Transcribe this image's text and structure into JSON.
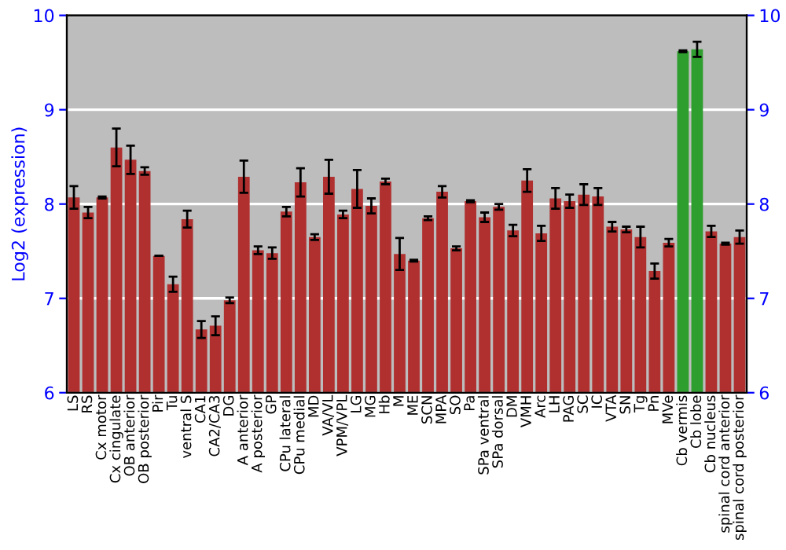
{
  "chart_data": {
    "type": "bar",
    "ylabel": "Log2 (expression)",
    "categories": [
      "LS",
      "RS",
      "Cx motor",
      "Cx cingulate",
      "OB anterior",
      "OB posterior",
      "Pir",
      "Tu",
      "ventral S",
      "CA1",
      "CA2/CA3",
      "DG",
      "A anterior",
      "A posterior",
      "GP",
      "CPu lateral",
      "CPu medial",
      "MD",
      "VA/VL",
      "VPM/VPL",
      "LG",
      "MG",
      "Hb",
      "M",
      "ME",
      "SCN",
      "MPA",
      "SO",
      "Pa",
      "SPa ventral",
      "SPa dorsal",
      "DM",
      "VMH",
      "Arc",
      "LH",
      "PAG",
      "SC",
      "IC",
      "VTA",
      "SN",
      "Tg",
      "Pn",
      "MVe",
      "Cb vermis",
      "Cb lobe",
      "Cb nucleus",
      "spinal cord anterior",
      "spinal cord posterior"
    ],
    "values": [
      8.07,
      7.91,
      8.07,
      8.6,
      8.47,
      8.35,
      7.45,
      7.15,
      7.84,
      6.67,
      6.71,
      6.98,
      8.29,
      7.51,
      7.48,
      7.92,
      8.23,
      7.65,
      8.29,
      7.89,
      8.16,
      7.98,
      8.24,
      7.47,
      7.4,
      7.85,
      8.13,
      7.53,
      8.03,
      7.86,
      7.97,
      7.72,
      8.25,
      7.69,
      8.06,
      8.03,
      8.1,
      8.08,
      7.76,
      7.73,
      7.65,
      7.29,
      7.59,
      9.62,
      9.64,
      7.71,
      7.58,
      7.65
    ],
    "errors": [
      0.12,
      0.06,
      0.01,
      0.2,
      0.15,
      0.04,
      0,
      0.08,
      0.09,
      0.09,
      0.1,
      0.03,
      0.17,
      0.04,
      0.06,
      0.05,
      0.15,
      0.03,
      0.18,
      0.04,
      0.2,
      0.08,
      0.03,
      0.17,
      0.01,
      0.02,
      0.06,
      0.02,
      0.01,
      0.05,
      0.03,
      0.06,
      0.12,
      0.08,
      0.11,
      0.07,
      0.11,
      0.09,
      0.05,
      0.03,
      0.11,
      0.08,
      0.04,
      0.01,
      0.08,
      0.06,
      0.01,
      0.07
    ],
    "colors": [
      "#b03030",
      "#b03030",
      "#b03030",
      "#b03030",
      "#b03030",
      "#b03030",
      "#b03030",
      "#b03030",
      "#b03030",
      "#b03030",
      "#b03030",
      "#b03030",
      "#b03030",
      "#b03030",
      "#b03030",
      "#b03030",
      "#b03030",
      "#b03030",
      "#b03030",
      "#b03030",
      "#b03030",
      "#b03030",
      "#b03030",
      "#b03030",
      "#b03030",
      "#b03030",
      "#b03030",
      "#b03030",
      "#b03030",
      "#b03030",
      "#b03030",
      "#b03030",
      "#b03030",
      "#b03030",
      "#b03030",
      "#b03030",
      "#b03030",
      "#b03030",
      "#b03030",
      "#b03030",
      "#b03030",
      "#b03030",
      "#b03030",
      "#2e9e2e",
      "#2e9e2e",
      "#b03030",
      "#b03030",
      "#b03030"
    ],
    "ylim": [
      6,
      10
    ],
    "yticks": [
      6,
      7,
      8,
      9,
      10
    ],
    "y2lim": [
      6,
      10
    ],
    "y2ticks": [
      6,
      7,
      8,
      9,
      10
    ],
    "grid": "y"
  }
}
